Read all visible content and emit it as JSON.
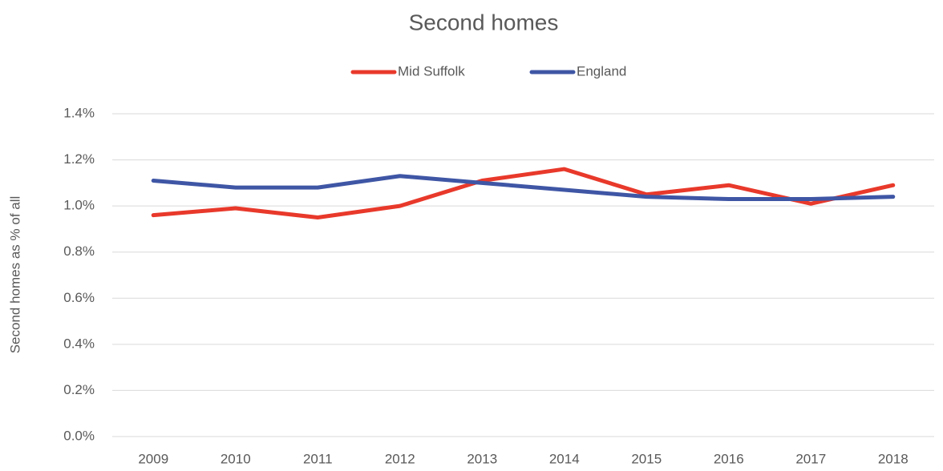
{
  "chart_data": {
    "type": "line",
    "title": "Second homes",
    "y_label": "Second homes as % of all",
    "categories": [
      "2009",
      "2010",
      "2011",
      "2012",
      "2013",
      "2014",
      "2015",
      "2016",
      "2017",
      "2018"
    ],
    "series": [
      {
        "name": "Mid Suffolk",
        "color": "#e8392b",
        "values": [
          0.96,
          0.99,
          0.95,
          1.0,
          1.11,
          1.16,
          1.05,
          1.09,
          1.01,
          1.09
        ]
      },
      {
        "name": "England",
        "color": "#3f56a5",
        "values": [
          1.11,
          1.08,
          1.08,
          1.13,
          1.1,
          1.07,
          1.04,
          1.03,
          1.03,
          1.04
        ]
      }
    ],
    "ylim": [
      0,
      1.4
    ],
    "yticks": [
      {
        "value": 0,
        "label": "0.0%"
      },
      {
        "value": 0.2,
        "label": "0.2%"
      },
      {
        "value": 0.4,
        "label": "0.4%"
      },
      {
        "value": 0.6,
        "label": "0.6%"
      },
      {
        "value": 0.8,
        "label": "0.8%"
      },
      {
        "value": 1.0,
        "label": "1.0%"
      },
      {
        "value": 1.2,
        "label": "1.2%"
      },
      {
        "value": 1.4,
        "label": "1.4%"
      }
    ],
    "grid": true,
    "legend": "top"
  }
}
